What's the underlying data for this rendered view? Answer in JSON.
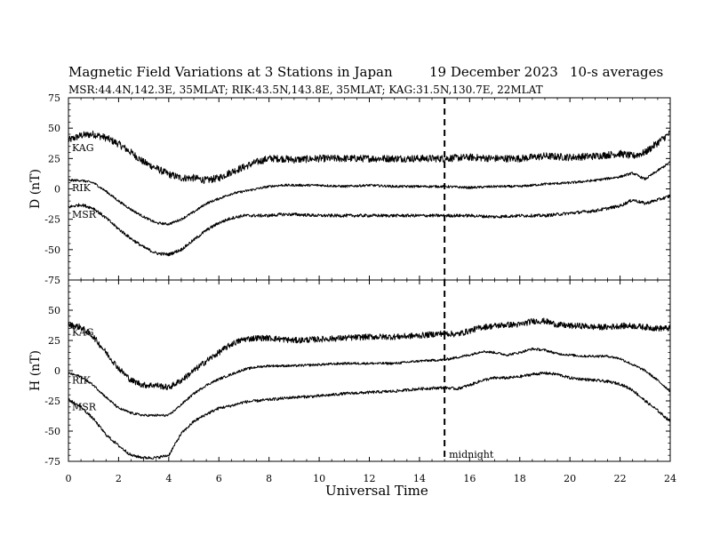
{
  "header": {
    "title": "Magnetic Field Variations at 3 Stations in Japan",
    "date": "19 December 2023",
    "averaging": "10-s averages",
    "stations_line": "MSR:44.4N,142.3E, 35MLAT;  RIK:43.5N,143.8E, 35MLAT;  KAG:31.5N,130.7E, 22MLAT"
  },
  "chart_data": [
    {
      "type": "line",
      "panel": "top",
      "ylabel": "D (nT)",
      "xlabel": "Universal Time",
      "xlim": [
        0,
        24
      ],
      "ylim": [
        -75,
        75
      ],
      "xticks": [
        0,
        2,
        4,
        6,
        8,
        10,
        12,
        14,
        16,
        18,
        20,
        22,
        24
      ],
      "yticks": [
        -75,
        -50,
        -25,
        0,
        25,
        50,
        75
      ],
      "grid": false,
      "marker_line": {
        "x": 15,
        "label": ""
      },
      "series": [
        {
          "name": "KAG",
          "noise": 3.0,
          "x": [
            0,
            0.5,
            1,
            1.5,
            2,
            2.5,
            3,
            3.5,
            4,
            4.5,
            5,
            5.5,
            6,
            6.5,
            7,
            7.5,
            8,
            8.5,
            9,
            10,
            11,
            12,
            13,
            14,
            15,
            16,
            17,
            18,
            19,
            20,
            21,
            22,
            22.5,
            23,
            23.5,
            24
          ],
          "values": [
            40,
            44,
            45,
            42,
            37,
            30,
            22,
            17,
            12,
            9,
            9,
            7,
            9,
            14,
            18,
            22,
            25,
            25,
            24,
            25,
            25,
            25,
            25,
            25,
            25,
            26,
            25,
            25,
            27,
            26,
            27,
            29,
            27,
            30,
            38,
            46
          ]
        },
        {
          "name": "RIK",
          "noise": 1.0,
          "x": [
            0,
            0.5,
            1,
            1.5,
            2,
            2.5,
            3,
            3.5,
            4,
            4.5,
            5,
            5.5,
            6,
            6.5,
            7,
            7.5,
            8,
            8.5,
            9,
            10,
            11,
            12,
            13,
            14,
            15,
            16,
            17,
            18,
            19,
            20,
            21,
            22,
            22.5,
            23,
            23.5,
            24
          ],
          "values": [
            7,
            7,
            5,
            -2,
            -10,
            -17,
            -23,
            -28,
            -29,
            -25,
            -19,
            -12,
            -8,
            -4,
            -2,
            0,
            2,
            3,
            3,
            3,
            2,
            3,
            2,
            2,
            2,
            1,
            2,
            2,
            4,
            5,
            7,
            10,
            13,
            8,
            15,
            22
          ]
        },
        {
          "name": "MSR",
          "noise": 1.3,
          "x": [
            0,
            0.5,
            1,
            1.5,
            2,
            2.5,
            3,
            3.5,
            4,
            4.5,
            5,
            5.5,
            6,
            6.5,
            7,
            7.5,
            8,
            8.5,
            9,
            10,
            11,
            12,
            13,
            14,
            15,
            16,
            17,
            18,
            19,
            20,
            21,
            22,
            22.5,
            23,
            23.5,
            24
          ],
          "values": [
            -15,
            -13,
            -16,
            -24,
            -33,
            -41,
            -48,
            -53,
            -54,
            -50,
            -42,
            -34,
            -28,
            -24,
            -22,
            -22,
            -22,
            -21,
            -21,
            -22,
            -22,
            -22,
            -22,
            -22,
            -22,
            -22,
            -23,
            -22,
            -22,
            -20,
            -18,
            -14,
            -9,
            -12,
            -9,
            -6
          ]
        }
      ]
    },
    {
      "type": "line",
      "panel": "bottom",
      "ylabel": "H (nT)",
      "xlabel": "Universal Time",
      "xlim": [
        0,
        24
      ],
      "ylim": [
        -75,
        75
      ],
      "xticks": [
        0,
        2,
        4,
        6,
        8,
        10,
        12,
        14,
        16,
        18,
        20,
        22,
        24
      ],
      "yticks": [
        -75,
        -50,
        -25,
        0,
        25,
        50,
        75
      ],
      "grid": false,
      "marker_line": {
        "x": 15,
        "label": "midnight"
      },
      "series": [
        {
          "name": "KAG",
          "noise": 2.5,
          "x": [
            0,
            0.5,
            1,
            1.5,
            2,
            2.5,
            3,
            3.5,
            4,
            4.5,
            5,
            5.5,
            6,
            6.5,
            7,
            7.5,
            8,
            8.5,
            9,
            10,
            11,
            12,
            13,
            14,
            15,
            15.5,
            16,
            16.5,
            17,
            17.5,
            18,
            18.5,
            19,
            19.5,
            20,
            20.5,
            21,
            21.5,
            22,
            22.5,
            23,
            23.5,
            24
          ],
          "values": [
            38,
            36,
            28,
            15,
            2,
            -8,
            -12,
            -12,
            -14,
            -8,
            0,
            8,
            15,
            22,
            26,
            27,
            27,
            26,
            25,
            26,
            27,
            28,
            28,
            29,
            31,
            30,
            33,
            36,
            37,
            38,
            38,
            41,
            41,
            38,
            37,
            37,
            36,
            36,
            37,
            37,
            36,
            35,
            35
          ]
        },
        {
          "name": "RIK",
          "noise": 1.0,
          "x": [
            0,
            0.5,
            1,
            1.5,
            2,
            2.5,
            3,
            3.5,
            4,
            4.5,
            5,
            5.5,
            6,
            6.5,
            7,
            7.5,
            8,
            8.5,
            9,
            10,
            11,
            12,
            13,
            14,
            15,
            15.5,
            16,
            16.5,
            17,
            17.5,
            18,
            18.5,
            19,
            19.5,
            20,
            20.5,
            21,
            21.5,
            22,
            22.5,
            23,
            23.5,
            24
          ],
          "values": [
            -2,
            -5,
            -12,
            -22,
            -31,
            -35,
            -37,
            -37,
            -37,
            -28,
            -19,
            -12,
            -7,
            -3,
            1,
            3,
            4,
            4,
            4,
            5,
            6,
            6,
            6,
            8,
            9,
            11,
            13,
            16,
            15,
            13,
            15,
            18,
            17,
            14,
            13,
            12,
            12,
            12,
            10,
            5,
            0,
            -8,
            -17
          ]
        },
        {
          "name": "MSR",
          "noise": 1.2,
          "x": [
            0,
            0.5,
            1,
            1.5,
            2,
            2.5,
            3,
            3.5,
            4,
            4.5,
            5,
            5.5,
            6,
            6.5,
            7,
            7.5,
            8,
            8.5,
            9,
            10,
            11,
            12,
            13,
            14,
            15,
            15.5,
            16,
            16.5,
            17,
            17.5,
            18,
            18.5,
            19,
            19.5,
            20,
            20.5,
            21,
            21.5,
            22,
            22.5,
            23,
            23.5,
            24
          ],
          "values": [
            -24,
            -30,
            -40,
            -53,
            -62,
            -70,
            -72,
            -72,
            -70,
            -52,
            -42,
            -36,
            -31,
            -29,
            -26,
            -25,
            -24,
            -23,
            -22,
            -21,
            -19,
            -18,
            -17,
            -15,
            -14,
            -15,
            -12,
            -8,
            -6,
            -6,
            -5,
            -3,
            -2,
            -3,
            -6,
            -7,
            -8,
            -9,
            -11,
            -16,
            -25,
            -33,
            -42
          ]
        }
      ]
    }
  ],
  "labels": {
    "top": {
      "KAG": "KAG",
      "RIK": "RIK",
      "MSR": "MSR"
    },
    "bottom": {
      "KAG": "KAG",
      "RIK": "RIK",
      "MSR": "MSR"
    }
  }
}
